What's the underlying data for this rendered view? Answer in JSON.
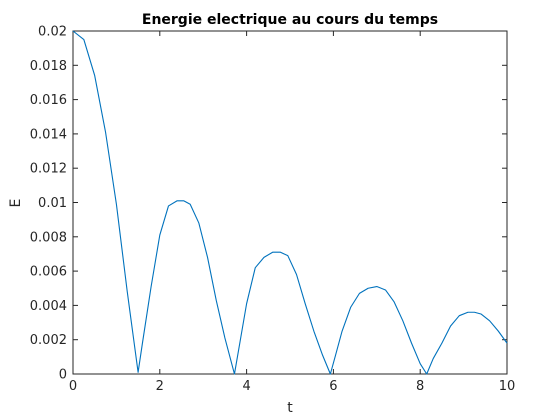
{
  "chart_data": {
    "type": "line",
    "title": "Energie electrique au cours du temps",
    "xlabel": "t",
    "ylabel": "E",
    "xlim": [
      0,
      10
    ],
    "ylim": [
      0,
      0.02
    ],
    "grid": false,
    "legend": null,
    "x_ticks": [
      "0",
      "2",
      "4",
      "6",
      "8",
      "10"
    ],
    "y_ticks": [
      "0",
      "0.002",
      "0.004",
      "0.006",
      "0.008",
      "0.01",
      "0.012",
      "0.014",
      "0.016",
      "0.018",
      "0.02"
    ],
    "series": [
      {
        "color": "#0072bd",
        "x": [
          0,
          0.25,
          0.5,
          0.75,
          1.0,
          1.25,
          1.5,
          1.6,
          1.8,
          2.0,
          2.2,
          2.4,
          2.55,
          2.7,
          2.9,
          3.1,
          3.3,
          3.5,
          3.72,
          3.85,
          4.0,
          4.2,
          4.4,
          4.6,
          4.78,
          4.95,
          5.15,
          5.35,
          5.55,
          5.75,
          5.93,
          6.05,
          6.2,
          6.4,
          6.6,
          6.8,
          7.0,
          7.2,
          7.4,
          7.6,
          7.8,
          8.0,
          8.15,
          8.3,
          8.5,
          8.7,
          8.9,
          9.1,
          9.25,
          9.4,
          9.6,
          9.8,
          10.0
        ],
        "y": [
          0.02,
          0.0195,
          0.0174,
          0.0141,
          0.0099,
          0.0048,
          0.0001,
          0.0018,
          0.0051,
          0.0081,
          0.0098,
          0.0101,
          0.0101,
          0.0099,
          0.0088,
          0.0068,
          0.0043,
          0.0021,
          0.0,
          0.0019,
          0.0041,
          0.0062,
          0.0068,
          0.0071,
          0.0071,
          0.0069,
          0.0058,
          0.0041,
          0.0025,
          0.0011,
          0.0,
          0.0011,
          0.0025,
          0.0039,
          0.0047,
          0.005,
          0.0051,
          0.0049,
          0.0042,
          0.0031,
          0.0018,
          0.0006,
          0.0,
          0.0009,
          0.0018,
          0.0028,
          0.0034,
          0.0036,
          0.0036,
          0.0035,
          0.0031,
          0.0025,
          0.0018
        ]
      }
    ]
  }
}
